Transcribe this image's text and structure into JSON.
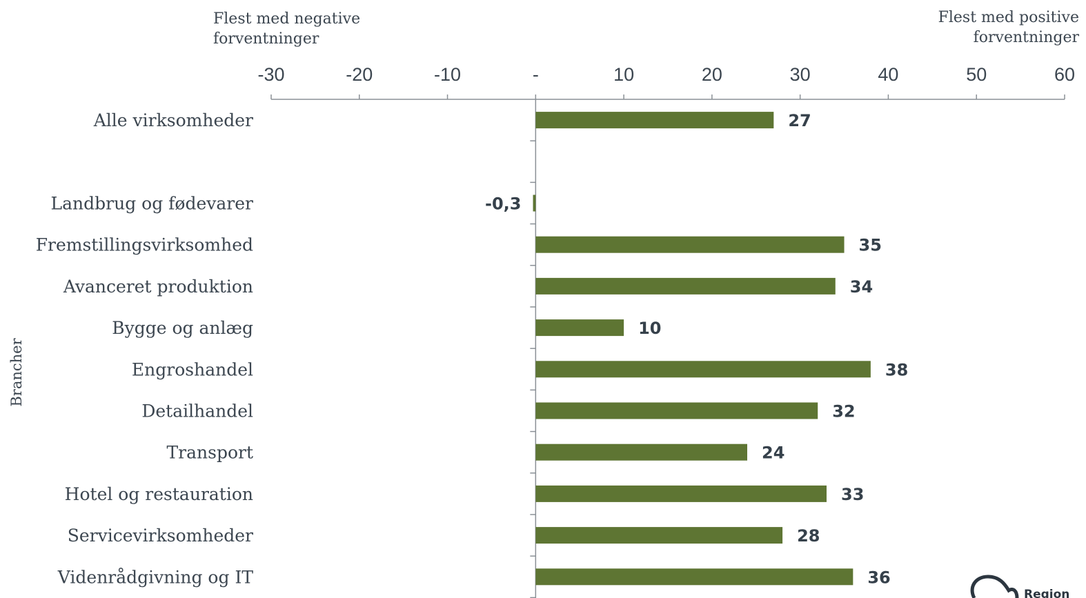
{
  "chart_data": {
    "type": "bar",
    "orientation": "horizontal",
    "categories": [
      "Alle virksomheder",
      "",
      "Landbrug og fødevarer",
      "Fremstillingsvirksomhed",
      "Avanceret produktion",
      "Bygge og anlæg",
      "Engroshandel",
      "Detailhandel",
      "Transport",
      "Hotel og restauration",
      "Servicevirksomheder",
      "Videnrådgivning og IT"
    ],
    "values": [
      27,
      null,
      -0.3,
      35,
      34,
      10,
      38,
      32,
      24,
      33,
      28,
      36
    ],
    "value_labels": [
      "27",
      "",
      "-0,3",
      "35",
      "34",
      "10",
      "38",
      "32",
      "24",
      "33",
      "28",
      "36"
    ],
    "xlim": [
      -30,
      60
    ],
    "xticks": [
      -30,
      -20,
      -10,
      0,
      10,
      20,
      30,
      40,
      50,
      60
    ],
    "xtick_labels": [
      "-30",
      "-20",
      "-10",
      "-",
      "10",
      "20",
      "30",
      "40",
      "50",
      "60"
    ],
    "ylabel": "Brancher",
    "annotations": {
      "left": [
        "Flest med negative",
        "forventninger"
      ],
      "right": [
        "Flest med positive",
        "forventninger"
      ]
    },
    "bar_color": "#5e7533",
    "grid": false,
    "axis_position": "top"
  },
  "logo": {
    "text": "Region"
  }
}
